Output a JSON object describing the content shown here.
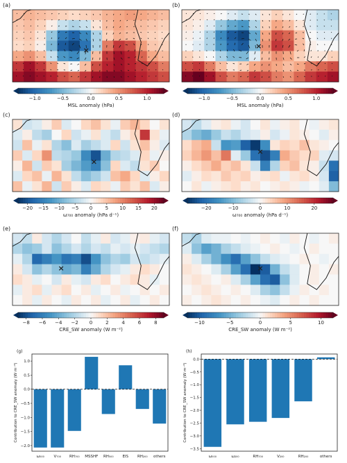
{
  "chart_data": [
    {
      "type": "heatmap",
      "panel": "(a)",
      "colorbar": {
        "label": "MSL anomaly (hPa)",
        "ticks": [
          -1.0,
          -0.5,
          0.0,
          0.5,
          1.0
        ],
        "tick_labels": [
          "−1.0",
          "−0.5",
          "0.0",
          "0.5",
          "1.0"
        ],
        "range": [
          -1.3,
          1.3
        ]
      },
      "overlay": "wind vector anomalies",
      "marker": "×",
      "grid": [
        [
          0.3,
          0.35,
          0.3,
          0.25,
          0.2,
          0.15,
          0.2,
          0.25,
          0.35,
          0.4,
          0.45,
          0.4,
          0.35,
          0.3
        ],
        [
          0.25,
          0.3,
          0.2,
          0.05,
          -0.2,
          -0.3,
          -0.2,
          0.1,
          0.3,
          0.4,
          0.35,
          0.3,
          0.25,
          0.2
        ],
        [
          0.2,
          0.25,
          0.1,
          -0.4,
          -0.9,
          -1.05,
          -0.8,
          -0.3,
          0.2,
          0.35,
          0.3,
          0.25,
          0.2,
          0.15
        ],
        [
          0.15,
          0.2,
          0.05,
          -0.5,
          -1.1,
          -1.2,
          -0.95,
          -0.3,
          0.6,
          0.9,
          0.8,
          0.45,
          0.25,
          0.2
        ],
        [
          0.4,
          0.5,
          0.3,
          -0.2,
          -0.7,
          -0.8,
          -0.5,
          0.3,
          0.9,
          1.1,
          1.0,
          0.7,
          0.4,
          0.3
        ],
        [
          0.9,
          1.1,
          0.9,
          0.5,
          0.1,
          0.0,
          0.3,
          0.8,
          1.0,
          1.1,
          1.0,
          0.9,
          0.8,
          0.6
        ],
        [
          1.1,
          1.2,
          1.1,
          1.0,
          0.8,
          0.7,
          0.9,
          1.1,
          1.2,
          1.2,
          1.1,
          1.0,
          0.9,
          0.8
        ]
      ]
    },
    {
      "type": "heatmap",
      "panel": "(b)",
      "colorbar": {
        "label": "MSL anomaly (hPa)",
        "ticks": [
          -1.0,
          -0.5,
          0.0,
          0.5,
          1.0
        ],
        "tick_labels": [
          "−1.0",
          "−0.5",
          "0.0",
          "0.5",
          "1.0"
        ],
        "range": [
          -1.3,
          1.3
        ]
      },
      "overlay": "wind vector anomalies",
      "marker": "×",
      "grid": [
        [
          0.1,
          0.1,
          0.05,
          0.0,
          -0.1,
          -0.2,
          -0.1,
          0.1,
          0.2,
          0.1,
          0.0,
          -0.1,
          -0.2,
          -0.3
        ],
        [
          0.1,
          0.05,
          -0.1,
          -0.4,
          -0.6,
          -0.7,
          -0.3,
          0.2,
          0.4,
          0.3,
          0.1,
          -0.1,
          -0.2,
          -0.2
        ],
        [
          0.05,
          -0.05,
          -0.3,
          -0.8,
          -1.1,
          -1.2,
          -0.6,
          0.4,
          0.8,
          0.7,
          0.3,
          0.0,
          -0.1,
          -0.1
        ],
        [
          0.0,
          -0.1,
          -0.3,
          -0.7,
          -1.0,
          -1.1,
          -0.5,
          0.5,
          0.9,
          0.8,
          0.3,
          0.05,
          0.0,
          0.0
        ],
        [
          0.2,
          0.1,
          0.0,
          -0.3,
          -0.5,
          -0.5,
          -0.1,
          0.3,
          0.5,
          0.4,
          0.2,
          0.1,
          0.1,
          0.2
        ],
        [
          0.8,
          0.9,
          0.6,
          0.3,
          0.1,
          0.2,
          0.4,
          0.5,
          0.4,
          0.3,
          0.4,
          0.6,
          0.7,
          0.8
        ],
        [
          1.2,
          1.3,
          1.1,
          0.8,
          0.6,
          0.7,
          0.9,
          0.8,
          0.6,
          0.5,
          0.7,
          0.9,
          1.0,
          1.1
        ]
      ]
    },
    {
      "type": "heatmap",
      "panel": "(c)",
      "colorbar": {
        "label": "ω₇₀₀ anomaly (hPa d⁻¹)",
        "ticks": [
          -20,
          -15,
          -10,
          -5,
          0,
          5,
          10,
          15,
          20
        ],
        "tick_labels": [
          "−20",
          "−15",
          "−10",
          "−5",
          "0",
          "5",
          "10",
          "15",
          "20"
        ],
        "range": [
          -23,
          23
        ]
      },
      "marker": "×",
      "grid": [
        [
          2,
          -3,
          -2,
          1,
          4,
          -2,
          0,
          3,
          5,
          2,
          -1,
          4,
          6,
          3,
          0,
          2
        ],
        [
          -2,
          1,
          -4,
          -6,
          0,
          3,
          -3,
          -1,
          2,
          -2,
          -4,
          1,
          3,
          16,
          2,
          -1
        ],
        [
          -3,
          5,
          -1,
          2,
          -5,
          -8,
          -2,
          -6,
          -4,
          -2,
          3,
          -3,
          2,
          5,
          1,
          -2
        ],
        [
          4,
          -2,
          3,
          9,
          -4,
          -5,
          -7,
          -14,
          -20,
          -10,
          -5,
          -4,
          -2,
          3,
          -1,
          1
        ],
        [
          1,
          6,
          -3,
          4,
          2,
          -6,
          -9,
          -12,
          -15,
          -8,
          3,
          -2,
          -4,
          2,
          4,
          0
        ],
        [
          -2,
          3,
          5,
          -1,
          6,
          2,
          -4,
          -8,
          -6,
          -3,
          5,
          7,
          3,
          -2,
          1,
          3
        ],
        [
          5,
          -1,
          2,
          6,
          -3,
          4,
          1,
          -2,
          3,
          2,
          -1,
          4,
          2,
          5,
          -2,
          1
        ]
      ]
    },
    {
      "type": "heatmap",
      "panel": "(d)",
      "colorbar": {
        "label": "ω₇₀₀ anomaly (hPa d⁻¹)",
        "ticks": [
          -20,
          -10,
          0,
          10,
          20
        ],
        "tick_labels": [
          "−20",
          "−10",
          "0",
          "10",
          "20"
        ],
        "range": [
          -27,
          27
        ]
      },
      "marker": "×",
      "grid": [
        [
          -3,
          -5,
          -2,
          1,
          2,
          -1,
          -3,
          0,
          2,
          -1,
          1,
          2,
          0,
          -1,
          1,
          2
        ],
        [
          -6,
          -10,
          -12,
          -8,
          -4,
          -6,
          -3,
          -2,
          1,
          -3,
          -1,
          2,
          1,
          0,
          -2,
          1
        ],
        [
          3,
          6,
          8,
          -4,
          -15,
          -14,
          -22,
          -26,
          -16,
          2,
          4,
          3,
          6,
          2,
          1,
          0
        ],
        [
          4,
          7,
          10,
          6,
          13,
          -2,
          -8,
          -20,
          -24,
          -18,
          8,
          5,
          3,
          4,
          -2,
          -3
        ],
        [
          1,
          3,
          5,
          8,
          4,
          6,
          2,
          -4,
          -18,
          -6,
          4,
          6,
          2,
          1,
          -4,
          -20
        ],
        [
          -2,
          1,
          3,
          2,
          5,
          3,
          4,
          1,
          2,
          3,
          -1,
          2,
          3,
          1,
          -3,
          -22
        ],
        [
          0,
          2,
          -1,
          1,
          2,
          3,
          1,
          2,
          0,
          1,
          2,
          1,
          -1,
          0,
          -2,
          -10
        ]
      ]
    },
    {
      "type": "heatmap",
      "panel": "(e)",
      "colorbar": {
        "label": "CRE_SW anomaly (W m⁻²)",
        "ticks": [
          -8,
          -6,
          -4,
          -2,
          0,
          2,
          4,
          6,
          8
        ],
        "tick_labels": [
          "−8",
          "−6",
          "−4",
          "−2",
          "0",
          "2",
          "4",
          "6",
          "8"
        ],
        "range": [
          -9,
          9
        ]
      },
      "marker": "×",
      "grid": [
        [
          -1,
          -1.5,
          0.5,
          -1,
          -2,
          -1,
          0,
          -1.5,
          -0.5,
          0.5,
          -1,
          -0.5,
          0.3,
          0.5,
          -0.5,
          -1
        ],
        [
          -2,
          -3,
          -2.5,
          -1,
          -3,
          -2,
          -1,
          -2,
          -1,
          -1.5,
          -0.5,
          -1,
          -0.5,
          -1,
          -1.5,
          -2
        ],
        [
          -0.5,
          -2,
          -7,
          -6,
          -5,
          -6.5,
          -6,
          -8,
          -5,
          -3,
          -2,
          -2.5,
          -1,
          -1.5,
          -1,
          -0.5
        ],
        [
          0.5,
          -1,
          -3,
          -2,
          -3,
          -4,
          -3.5,
          -6,
          -4,
          -2,
          -1,
          -0.5,
          0.5,
          1,
          0.5,
          0
        ],
        [
          1,
          0.5,
          -0.5,
          0,
          -1,
          0.5,
          -0.5,
          -1,
          0.5,
          1,
          0,
          0.5,
          1,
          0.5,
          -0.5,
          0
        ],
        [
          -0.5,
          0.5,
          1,
          -0.5,
          0.5,
          1,
          0,
          0.5,
          -0.5,
          0,
          0.5,
          -0.3,
          0,
          0.5,
          0,
          0.5
        ],
        [
          0,
          0.5,
          -0.5,
          0.5,
          0,
          -0.5,
          0.5,
          0,
          0.5,
          -0.5,
          0,
          0.5,
          -0.5,
          0,
          0.5,
          0
        ]
      ]
    },
    {
      "type": "heatmap",
      "panel": "(f)",
      "colorbar": {
        "label": "CRE_SW anomaly (W m⁻²)",
        "ticks": [
          -10,
          -5,
          0,
          5,
          10
        ],
        "tick_labels": [
          "−10",
          "−5",
          "0",
          "5",
          "10"
        ],
        "range": [
          -12,
          12
        ]
      },
      "marker": "×",
      "grid": [
        [
          -2,
          -3,
          -1,
          -0.5,
          -0.5,
          0,
          -0.5,
          0,
          0.5,
          0,
          -0.5,
          0.5,
          0,
          -0.5,
          0,
          0.5
        ],
        [
          -1,
          -4,
          -6,
          -5,
          -3,
          -2,
          -1,
          -0.5,
          0,
          0.5,
          0,
          -0.5,
          0,
          0.5,
          0,
          0
        ],
        [
          0.5,
          -1,
          -3,
          -5,
          -7,
          -9,
          -6,
          -4,
          -2,
          -1,
          -0.5,
          0,
          0.5,
          0,
          -0.5,
          0
        ],
        [
          1,
          0.5,
          0,
          -1,
          -3,
          -6,
          -9,
          -12,
          -10,
          -5,
          -2,
          -1,
          0,
          0.5,
          0,
          0.5
        ],
        [
          0.5,
          1,
          0.5,
          0,
          0.5,
          -1,
          -3,
          -6,
          -9,
          -10,
          -4,
          -1,
          0,
          0.5,
          0,
          0
        ],
        [
          0,
          0.5,
          1,
          0.5,
          0,
          0.5,
          0,
          -1,
          -3,
          -4,
          -2,
          -0.5,
          0.5,
          0,
          0.5,
          0
        ],
        [
          0.5,
          0,
          0.5,
          1,
          0.5,
          0,
          0.5,
          0,
          -0.5,
          -1,
          0,
          0.5,
          0,
          0.5,
          0,
          0
        ]
      ]
    },
    {
      "type": "bar",
      "panel": "(g)",
      "categories": [
        "ω₅₀₀",
        "V₇₀₀",
        "RH₇₀₀",
        "MSSHF",
        "RH₅₀₀",
        "EIS",
        "RH₂₀₀",
        "others"
      ],
      "values": [
        -2.07,
        -2.07,
        -1.48,
        1.15,
        -0.88,
        0.85,
        -0.7,
        -1.22
      ],
      "ylabel": "Contribution to CRE_SW anomaly (W m⁻²)",
      "ylim": [
        -2.2,
        1.25
      ],
      "yticks": [
        -2.0,
        -1.5,
        -1.0,
        -0.5,
        0.0,
        0.5,
        1.0
      ],
      "ytick_labels": [
        "−2.0",
        "−1.5",
        "−1.0",
        "−0.5",
        "0.0",
        "0.5",
        "1.0"
      ],
      "zero_line": "dashed",
      "color": "#1f77b4"
    },
    {
      "type": "bar",
      "panel": "(h)",
      "categories": [
        "ω₅₀₀",
        "ω₂₀₀",
        "RH₇₀₀",
        "V₂₀₀",
        "RH₂₀₀",
        "others"
      ],
      "values": [
        -3.43,
        -2.55,
        -2.45,
        -2.3,
        -1.65,
        0.07
      ],
      "ylabel": "Contribution to CRE_SW anomaly (W m⁻²)",
      "ylim": [
        -3.6,
        0.2
      ],
      "yticks": [
        -3.5,
        -3.0,
        -2.5,
        -2.0,
        -1.5,
        -1.0,
        -0.5,
        0.0
      ],
      "ytick_labels": [
        "−3.5",
        "−3.0",
        "−2.5",
        "−2.0",
        "−1.5",
        "−1.0",
        "−0.5",
        "0.0"
      ],
      "zero_line": "dashed",
      "color": "#1f77b4"
    }
  ]
}
